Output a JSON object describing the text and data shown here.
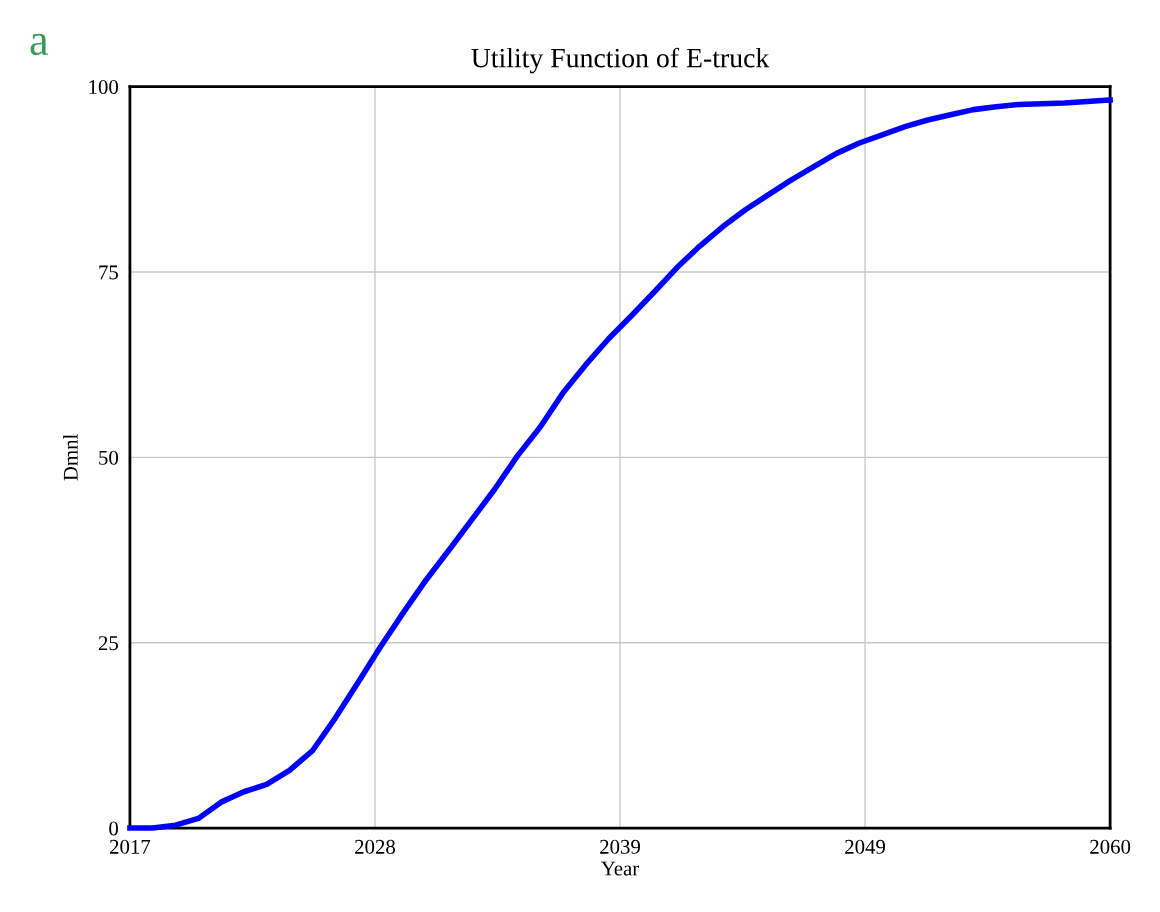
{
  "chart_data": {
    "type": "line",
    "title": "Utility Function of E-truck",
    "xlabel": "Year",
    "ylabel": "Dmnl",
    "annotations": [
      "a"
    ],
    "x": [
      2017,
      2018,
      2019,
      2020,
      2021,
      2022,
      2023,
      2024,
      2025,
      2026,
      2027,
      2028,
      2029,
      2030,
      2031,
      2032,
      2033,
      2034,
      2035,
      2036,
      2037,
      2038,
      2039,
      2040,
      2041,
      2042,
      2043,
      2044,
      2045,
      2046,
      2047,
      2048,
      2049,
      2050,
      2051,
      2052,
      2053,
      2054,
      2055,
      2056,
      2057,
      2058,
      2059,
      2060
    ],
    "series": [
      {
        "color": "#0000ff",
        "values": [
          0,
          0,
          0.4,
          1.3,
          3.5,
          4.9,
          5.9,
          7.8,
          10.4,
          14.8,
          19.6,
          24.5,
          29.1,
          33.5,
          37.5,
          41.6,
          45.7,
          50.2,
          54.1,
          58.7,
          62.5,
          66,
          69.1,
          72.3,
          75.6,
          78.5,
          81.1,
          83.4,
          85.4,
          87.4,
          89.2,
          91,
          92.4,
          93.5,
          94.6,
          95.5,
          96.2,
          96.9,
          97.3,
          97.6,
          97.7,
          97.8,
          98,
          98.2
        ]
      }
    ],
    "xlim": [
      2017,
      2060
    ],
    "ylim": [
      0,
      100
    ],
    "xticks": [
      2017,
      {
        "value": 2027.75,
        "label": "2028"
      },
      {
        "value": 2038.5,
        "label": "2039"
      },
      {
        "value": 2049.25,
        "label": "2049"
      },
      2060
    ],
    "yticks": [
      0,
      25,
      50,
      75,
      100
    ],
    "grid": true,
    "line_style": "solid",
    "marker": "none"
  }
}
